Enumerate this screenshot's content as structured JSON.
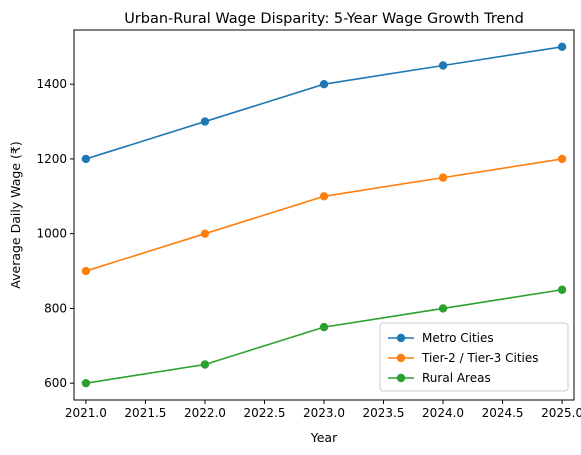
{
  "chart_data": {
    "type": "line",
    "title": "Urban-Rural Wage Disparity: 5-Year Wage Growth Trend",
    "xlabel": "Year",
    "ylabel": "Average Daily Wage (₹)",
    "x": [
      2021,
      2022,
      2023,
      2024,
      2025
    ],
    "xlim": [
      2020.9,
      2025.1
    ],
    "ylim": [
      555,
      1545
    ],
    "xticks": [
      2021.0,
      2021.5,
      2022.0,
      2022.5,
      2023.0,
      2023.5,
      2024.0,
      2024.5,
      2025.0
    ],
    "xtick_labels": [
      "2021.0",
      "2021.5",
      "2022.0",
      "2022.5",
      "2023.0",
      "2023.5",
      "2024.0",
      "2024.5",
      "2025.0"
    ],
    "yticks": [
      600,
      800,
      1000,
      1200,
      1400
    ],
    "ytick_labels": [
      "600",
      "800",
      "1000",
      "1200",
      "1400"
    ],
    "grid": false,
    "legend_position": "lower-right",
    "series": [
      {
        "name": "Metro Cities",
        "color": "#1f77b4",
        "values": [
          1200,
          1300,
          1400,
          1450,
          1500
        ]
      },
      {
        "name": "Tier-2 / Tier-3 Cities",
        "color": "#ff7f0e",
        "values": [
          900,
          1000,
          1100,
          1150,
          1200
        ]
      },
      {
        "name": "Rural Areas",
        "color": "#2ca02c",
        "values": [
          600,
          650,
          750,
          800,
          850
        ]
      }
    ]
  }
}
